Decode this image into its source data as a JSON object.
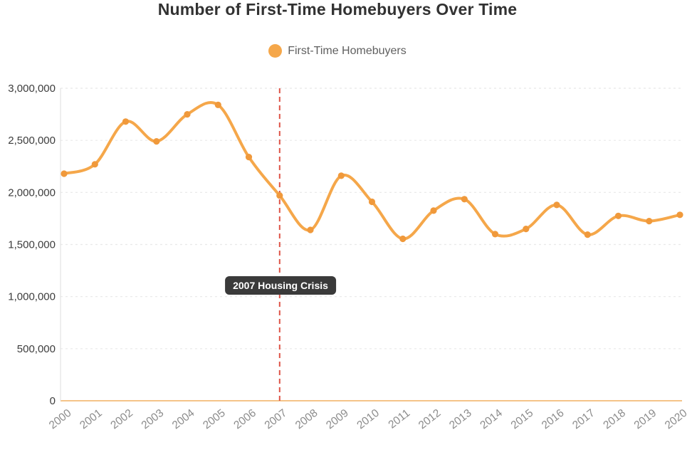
{
  "title": "Number of First-Time Homebuyers Over Time",
  "legend": {
    "label": "First-Time Homebuyers",
    "marker_color": "#F5A74A"
  },
  "annotation": {
    "label": "2007 Housing Crisis",
    "bg": "#3A3A3A",
    "text_color": "#FFFFFF"
  },
  "colors": {
    "line": "#F5A74A",
    "point": "#F0993B",
    "vline": "#DE5448",
    "axis_baseline": "#F2B061",
    "gridline": "#E8E8E8",
    "y_axis_border": "#E3E3E3",
    "y_tick_text": "#3C3C3C",
    "x_tick_text": "#8C8C8C"
  },
  "chart_data": {
    "type": "line",
    "title": "Number of First-Time Homebuyers Over Time",
    "xlabel": "",
    "ylabel": "",
    "ylim": [
      0,
      3000000
    ],
    "grid": "horizontal dashed",
    "legend_position": "top",
    "categories": [
      "2000",
      "2001",
      "2002",
      "2003",
      "2004",
      "2005",
      "2006",
      "2007",
      "2008",
      "2009",
      "2010",
      "2011",
      "2012",
      "2013",
      "2014",
      "2015",
      "2016",
      "2017",
      "2018",
      "2019",
      "2020"
    ],
    "yticks": [
      0,
      500000,
      1000000,
      1500000,
      2000000,
      2500000,
      3000000
    ],
    "ytick_labels": [
      "0",
      "500,000",
      "1,000,000",
      "1,500,000",
      "2,000,000",
      "2,500,000",
      "3,000,000"
    ],
    "series": [
      {
        "name": "First-Time Homebuyers",
        "smoothing": "cubic",
        "values": [
          2180000,
          2270000,
          2680000,
          2490000,
          2750000,
          2840000,
          2340000,
          1970000,
          1640000,
          2160000,
          1910000,
          1555000,
          1825000,
          1935000,
          1600000,
          1650000,
          1880000,
          1595000,
          1775000,
          1725000,
          1785000
        ]
      }
    ],
    "vline": {
      "x": "2007",
      "style": "dashed",
      "label": "2007 Housing Crisis"
    }
  }
}
